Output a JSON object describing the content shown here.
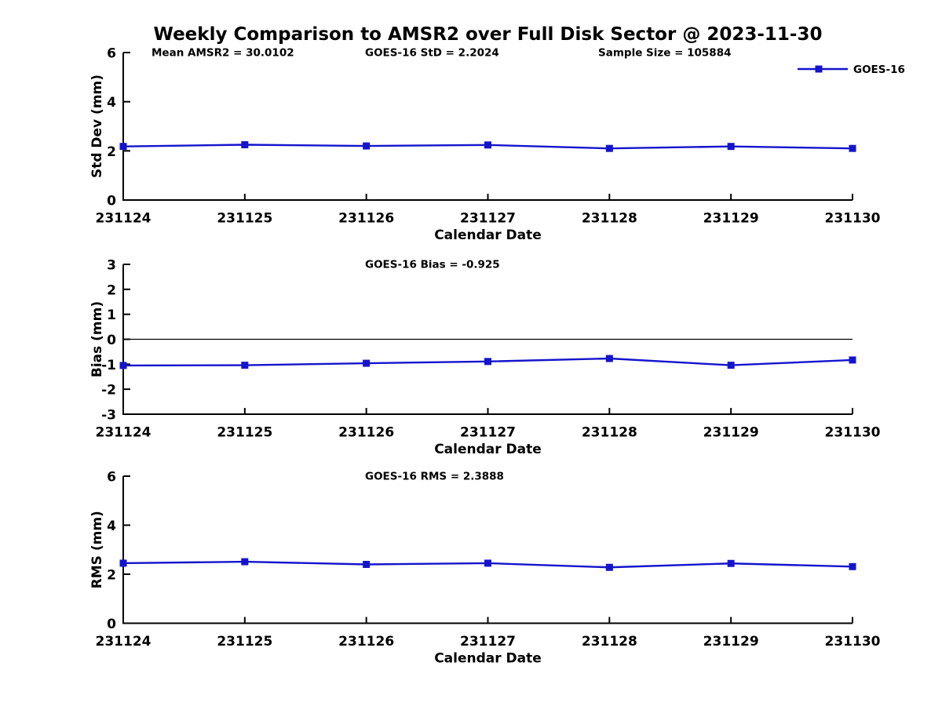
{
  "title": "Weekly Comparison to AMSR2 over Full Disk Sector @ 2023-11-30",
  "colors": {
    "series_blue": "#1414cc",
    "axis_black": "#000000",
    "text_black": "#000000",
    "background": "#ffffff"
  },
  "legend": {
    "label": "GOES-16"
  },
  "chart_data": [
    {
      "name": "std-dev",
      "type": "line",
      "annotations": [
        "Mean AMSR2 = 30.0102",
        "GOES-16 StD = 2.2024",
        "Sample Size = 105884"
      ],
      "categories": [
        "231124",
        "231125",
        "231126",
        "231127",
        "231128",
        "231129",
        "231130"
      ],
      "series": [
        {
          "name": "GOES-16",
          "values": [
            2.18,
            2.25,
            2.2,
            2.24,
            2.1,
            2.18,
            2.1
          ]
        }
      ],
      "xlabel": "Calendar Date",
      "ylabel": "Std Dev (mm)",
      "ylim": [
        0,
        6
      ],
      "yticks": [
        0,
        2,
        4,
        6
      ],
      "zero_line": false,
      "show_legend": true,
      "legend_position": "top-right",
      "grid": false
    },
    {
      "name": "bias",
      "type": "line",
      "annotations": [
        "GOES-16 Bias  = -0.925"
      ],
      "categories": [
        "231124",
        "231125",
        "231126",
        "231127",
        "231128",
        "231129",
        "231130"
      ],
      "series": [
        {
          "name": "GOES-16",
          "values": [
            -1.05,
            -1.04,
            -0.96,
            -0.89,
            -0.77,
            -1.04,
            -0.83
          ]
        }
      ],
      "xlabel": "Calendar Date",
      "ylabel": "Bias (mm)",
      "ylim": [
        -3,
        3
      ],
      "yticks": [
        -3,
        -2,
        -1,
        0,
        1,
        2,
        3
      ],
      "zero_line": true,
      "show_legend": false,
      "grid": false
    },
    {
      "name": "rms",
      "type": "line",
      "annotations": [
        "GOES-16 RMS = 2.3888"
      ],
      "categories": [
        "231124",
        "231125",
        "231126",
        "231127",
        "231128",
        "231129",
        "231130"
      ],
      "series": [
        {
          "name": "GOES-16",
          "values": [
            2.45,
            2.51,
            2.4,
            2.45,
            2.28,
            2.44,
            2.31
          ]
        }
      ],
      "xlabel": "Calendar Date",
      "ylabel": "RMS (mm)",
      "ylim": [
        0,
        6
      ],
      "yticks": [
        0,
        2,
        4,
        6
      ],
      "zero_line": false,
      "show_legend": false,
      "grid": false
    }
  ]
}
